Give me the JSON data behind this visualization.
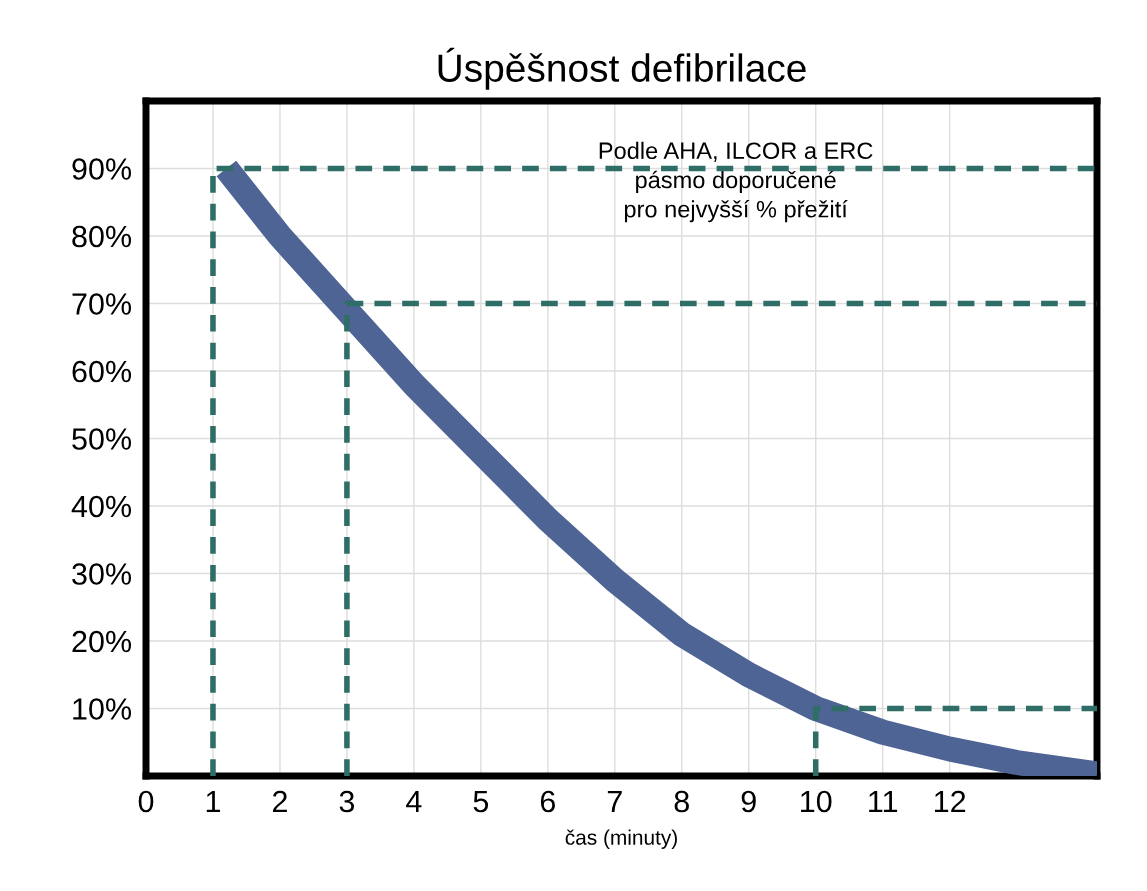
{
  "chart_data": {
    "type": "line",
    "title": "Úspěšnost defibrilace",
    "xlabel": "čas (minuty)",
    "xlim": [
      0,
      14.2
    ],
    "ylim": [
      0,
      100
    ],
    "xticks": [
      0,
      1,
      2,
      3,
      4,
      5,
      6,
      7,
      8,
      9,
      10,
      11,
      12
    ],
    "yticks": [
      {
        "value": 10,
        "label": "10%"
      },
      {
        "value": 20,
        "label": "20%"
      },
      {
        "value": 30,
        "label": "30%"
      },
      {
        "value": 40,
        "label": "40%"
      },
      {
        "value": 50,
        "label": "50%"
      },
      {
        "value": 60,
        "label": "60%"
      },
      {
        "value": 70,
        "label": "70%"
      },
      {
        "value": 80,
        "label": "80%"
      },
      {
        "value": 90,
        "label": "90%"
      }
    ],
    "grid": true,
    "annotations": [
      "Podle AHA, ILCOR a ERC\npásmo doporučené\npro nejvyšší % přežití"
    ],
    "series": [
      {
        "x": [
          1.2,
          2,
          3,
          4,
          5,
          6,
          7,
          8,
          9,
          10,
          11,
          12,
          13,
          14.2
        ],
        "values": [
          90,
          80,
          69,
          58,
          48,
          38,
          29,
          21,
          15,
          10,
          6.5,
          4,
          2,
          0.3
        ],
        "color": "#4e6494"
      },
      {
        "x": [
          1,
          1,
          14.2
        ],
        "values": [
          0,
          90,
          90
        ],
        "color": "#2f6e66",
        "line_style": "dashed"
      },
      {
        "x": [
          3,
          3,
          14.2
        ],
        "values": [
          0,
          70,
          70
        ],
        "color": "#2f6e66",
        "line_style": "dashed"
      },
      {
        "x": [
          10,
          10,
          14.2
        ],
        "values": [
          0,
          10,
          10
        ],
        "color": "#2f6e66",
        "line_style": "dashed"
      }
    ]
  }
}
